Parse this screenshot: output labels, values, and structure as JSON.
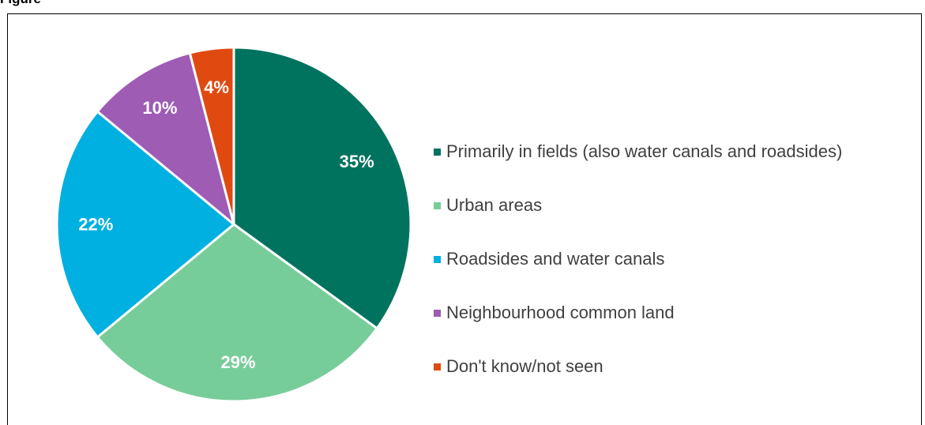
{
  "title": "Figure",
  "chart_data": {
    "type": "pie",
    "title": "",
    "legend_position": "right",
    "labels": [
      "Primarily in fields (also water canals and roadsides)",
      "Urban areas",
      "Roadsides and water canals",
      "Neighbourhood common land",
      "Don't know/not seen"
    ],
    "values": [
      35,
      29,
      22,
      10,
      4
    ],
    "value_labels": [
      "35%",
      "29%",
      "22%",
      "10%",
      "4%"
    ],
    "colors": [
      "#00735f",
      "#77cd99",
      "#00b0e0",
      "#9e5cb4",
      "#e04a10"
    ],
    "slice_border_color": "#ffffff",
    "label_color": "#ffffff"
  }
}
